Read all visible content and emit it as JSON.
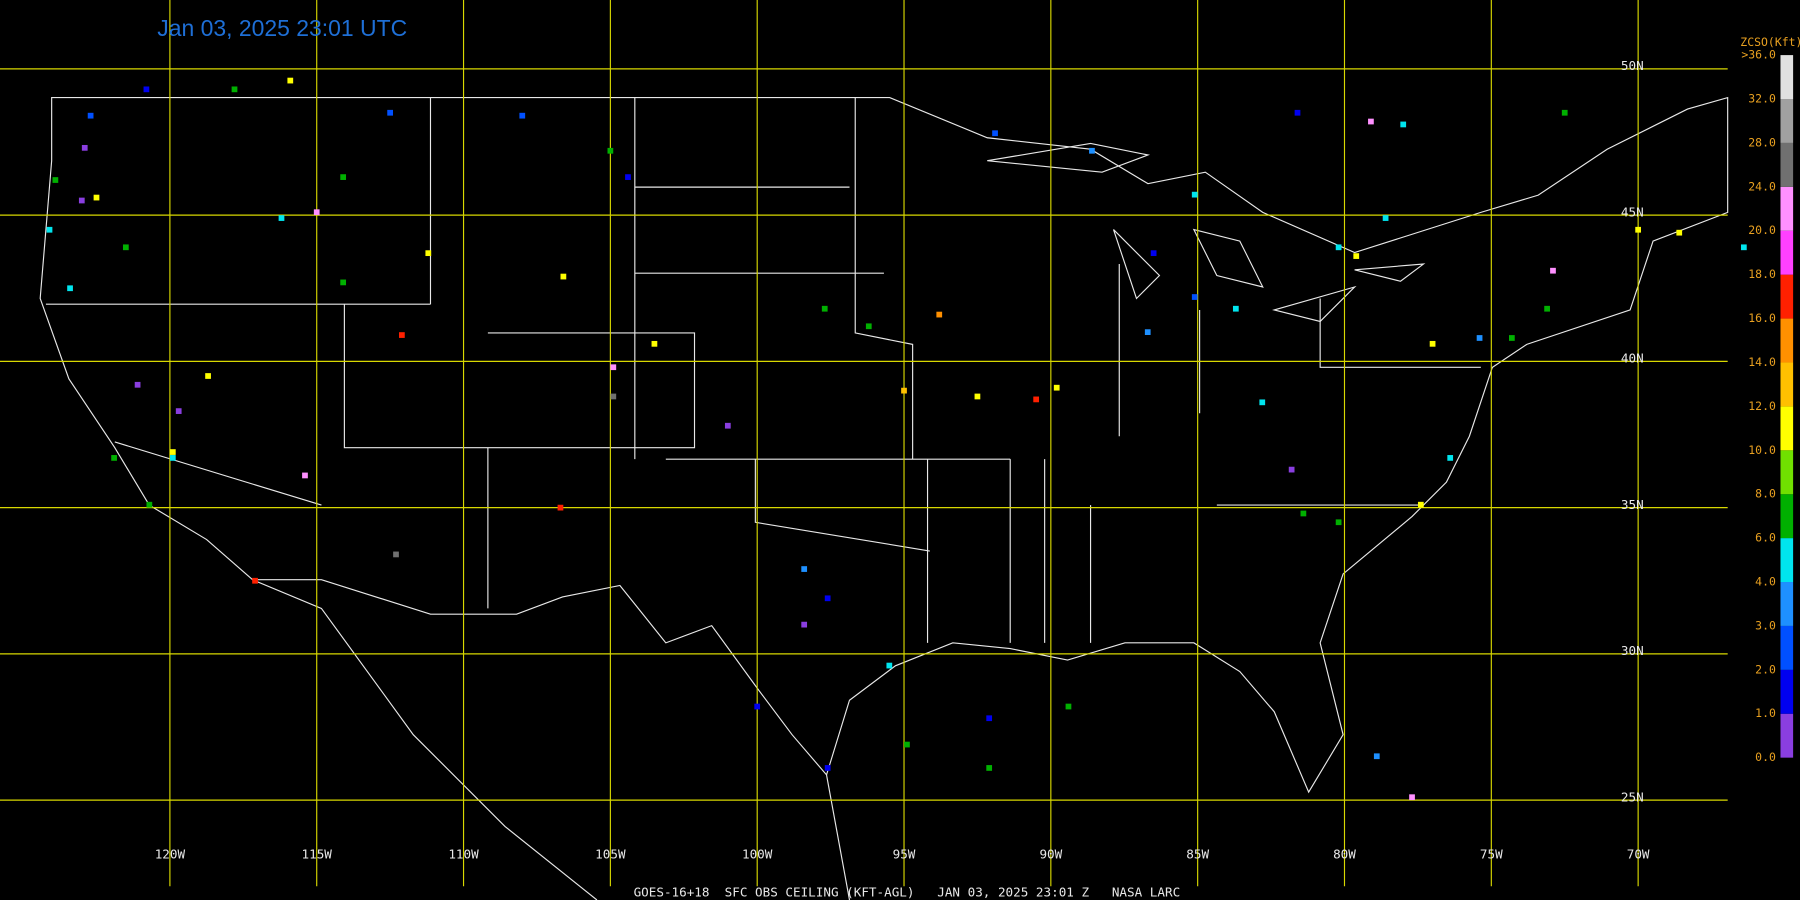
{
  "title": "Jan 03, 2025 23:01 UTC",
  "caption": "GOES-16+18  SFC OBS CEILING (KFT-AGL)   JAN 03, 2025 23:01 Z   NASA LARC",
  "map": {
    "type": "station-map",
    "lon_ticks": [
      {
        "value": -120,
        "label": "120W"
      },
      {
        "value": -115,
        "label": "115W"
      },
      {
        "value": -110,
        "label": "110W"
      },
      {
        "value": -105,
        "label": "105W"
      },
      {
        "value": -100,
        "label": "100W"
      },
      {
        "value": -95,
        "label": "95W"
      },
      {
        "value": -90,
        "label": "90W"
      },
      {
        "value": -85,
        "label": "85W"
      },
      {
        "value": -80,
        "label": "80W"
      },
      {
        "value": -75,
        "label": "75W"
      },
      {
        "value": -70,
        "label": "70W"
      }
    ],
    "lat_ticks": [
      {
        "value": 50,
        "label": "50N"
      },
      {
        "value": 45,
        "label": "45N"
      },
      {
        "value": 40,
        "label": "40N"
      },
      {
        "value": 35,
        "label": "35N"
      },
      {
        "value": 30,
        "label": "30N"
      },
      {
        "value": 25,
        "label": "25N"
      }
    ],
    "grid_color": "#d8d800",
    "legend": {
      "title": "ZCSO(Kft)",
      "ticks": [
        {
          "value": 0,
          "label": "0.0"
        },
        {
          "value": 1,
          "label": "1.0"
        },
        {
          "value": 2,
          "label": "2.0"
        },
        {
          "value": 3,
          "label": "3.0"
        },
        {
          "value": 4,
          "label": "4.0"
        },
        {
          "value": 6,
          "label": "6.0"
        },
        {
          "value": 8,
          "label": "8.0"
        },
        {
          "value": 10,
          "label": "10.0"
        },
        {
          "value": 12,
          "label": "12.0"
        },
        {
          "value": 14,
          "label": "14.0"
        },
        {
          "value": 16,
          "label": "16.0"
        },
        {
          "value": 18,
          "label": "18.0"
        },
        {
          "value": 20,
          "label": "20.0"
        },
        {
          "value": 24,
          "label": "24.0"
        },
        {
          "value": 28,
          "label": "28.0"
        },
        {
          "value": 32,
          "label": "32.0"
        },
        {
          "value": 36,
          "label": ">36.0"
        }
      ],
      "colors": [
        "#8a3ee0",
        "#0000f0",
        "#0050ff",
        "#1e90ff",
        "#00e5ee",
        "#00b000",
        "#70e000",
        "#ffff00",
        "#ffc000",
        "#ff9000",
        "#ff2000",
        "#ff40ff",
        "#ff90ff",
        "#707070",
        "#a0a0a0",
        "#e0e0e0"
      ]
    },
    "stations": [
      {
        "lon": -117.8,
        "lat": 49.3,
        "ceiling": 7
      },
      {
        "lon": -115.9,
        "lat": 49.6,
        "ceiling": 11
      },
      {
        "lon": -120.8,
        "lat": 49.3,
        "ceiling": 1.5
      },
      {
        "lon": -122.7,
        "lat": 48.4,
        "ceiling": 2.5
      },
      {
        "lon": -122.9,
        "lat": 47.3,
        "ceiling": 0.5
      },
      {
        "lon": -123.9,
        "lat": 46.2,
        "ceiling": 7
      },
      {
        "lon": -123.0,
        "lat": 45.5,
        "ceiling": 0.5
      },
      {
        "lon": -122.5,
        "lat": 45.6,
        "ceiling": 11
      },
      {
        "lon": -124.1,
        "lat": 44.5,
        "ceiling": 5
      },
      {
        "lon": -121.5,
        "lat": 43.9,
        "ceiling": 7
      },
      {
        "lon": -123.4,
        "lat": 42.5,
        "ceiling": 5
      },
      {
        "lon": -112.5,
        "lat": 48.5,
        "ceiling": 2.5
      },
      {
        "lon": -114.1,
        "lat": 46.3,
        "ceiling": 7
      },
      {
        "lon": -115.0,
        "lat": 45.1,
        "ceiling": 21
      },
      {
        "lon": -116.2,
        "lat": 44.9,
        "ceiling": 5
      },
      {
        "lon": -114.1,
        "lat": 42.7,
        "ceiling": 7
      },
      {
        "lon": -112.1,
        "lat": 40.9,
        "ceiling": 17
      },
      {
        "lon": -111.2,
        "lat": 43.7,
        "ceiling": 11
      },
      {
        "lon": -108.0,
        "lat": 48.4,
        "ceiling": 2.5
      },
      {
        "lon": -105.0,
        "lat": 47.2,
        "ceiling": 7
      },
      {
        "lon": -104.4,
        "lat": 46.3,
        "ceiling": 1.5
      },
      {
        "lon": -106.6,
        "lat": 42.9,
        "ceiling": 11
      },
      {
        "lon": -103.5,
        "lat": 40.6,
        "ceiling": 11
      },
      {
        "lon": -104.9,
        "lat": 39.8,
        "ceiling": 21
      },
      {
        "lon": -104.9,
        "lat": 38.8,
        "ceiling": 26
      },
      {
        "lon": -106.7,
        "lat": 35.0,
        "ceiling": 17
      },
      {
        "lon": -112.3,
        "lat": 33.4,
        "ceiling": 26
      },
      {
        "lon": -115.4,
        "lat": 36.1,
        "ceiling": 21
      },
      {
        "lon": -117.1,
        "lat": 32.5,
        "ceiling": 17
      },
      {
        "lon": -119.9,
        "lat": 36.7,
        "ceiling": 5
      },
      {
        "lon": -120.7,
        "lat": 35.1,
        "ceiling": 7
      },
      {
        "lon": -121.9,
        "lat": 36.7,
        "ceiling": 7
      },
      {
        "lon": -119.7,
        "lat": 38.3,
        "ceiling": 0.5
      },
      {
        "lon": -121.1,
        "lat": 39.2,
        "ceiling": 0.5
      },
      {
        "lon": -118.7,
        "lat": 39.5,
        "ceiling": 11
      },
      {
        "lon": -119.9,
        "lat": 36.9,
        "ceiling": 11
      },
      {
        "lon": -101.0,
        "lat": 37.8,
        "ceiling": 0.5
      },
      {
        "lon": -97.7,
        "lat": 41.8,
        "ceiling": 7
      },
      {
        "lon": -96.2,
        "lat": 41.2,
        "ceiling": 7
      },
      {
        "lon": -93.8,
        "lat": 41.6,
        "ceiling": 15
      },
      {
        "lon": -95.0,
        "lat": 39.0,
        "ceiling": 13
      },
      {
        "lon": -92.5,
        "lat": 38.8,
        "ceiling": 11
      },
      {
        "lon": -90.5,
        "lat": 38.7,
        "ceiling": 17
      },
      {
        "lon": -89.8,
        "lat": 39.1,
        "ceiling": 11
      },
      {
        "lon": -98.4,
        "lat": 32.9,
        "ceiling": 3.5
      },
      {
        "lon": -97.6,
        "lat": 31.9,
        "ceiling": 1.5
      },
      {
        "lon": -95.5,
        "lat": 29.6,
        "ceiling": 5
      },
      {
        "lon": -98.4,
        "lat": 31.0,
        "ceiling": 0.5
      },
      {
        "lon": -100.0,
        "lat": 28.2,
        "ceiling": 1.5
      },
      {
        "lon": -97.6,
        "lat": 26.1,
        "ceiling": 1.5
      },
      {
        "lon": -94.9,
        "lat": 26.9,
        "ceiling": 7
      },
      {
        "lon": -92.1,
        "lat": 26.1,
        "ceiling": 7
      },
      {
        "lon": -92.1,
        "lat": 27.8,
        "ceiling": 1.5
      },
      {
        "lon": -89.4,
        "lat": 28.2,
        "ceiling": 7
      },
      {
        "lon": -91.9,
        "lat": 47.8,
        "ceiling": 2.5
      },
      {
        "lon": -88.6,
        "lat": 47.2,
        "ceiling": 3.5
      },
      {
        "lon": -86.5,
        "lat": 43.7,
        "ceiling": 1.5
      },
      {
        "lon": -85.1,
        "lat": 42.2,
        "ceiling": 2.5
      },
      {
        "lon": -83.7,
        "lat": 41.8,
        "ceiling": 5
      },
      {
        "lon": -86.7,
        "lat": 41.0,
        "ceiling": 3.5
      },
      {
        "lon": -82.8,
        "lat": 38.6,
        "ceiling": 5
      },
      {
        "lon": -81.8,
        "lat": 36.3,
        "ceiling": 0.5
      },
      {
        "lon": -81.4,
        "lat": 34.8,
        "ceiling": 7
      },
      {
        "lon": -80.2,
        "lat": 34.5,
        "ceiling": 7
      },
      {
        "lon": -79.1,
        "lat": 48.2,
        "ceiling": 21
      },
      {
        "lon": -81.6,
        "lat": 48.5,
        "ceiling": 1.5
      },
      {
        "lon": -78.0,
        "lat": 48.1,
        "ceiling": 5
      },
      {
        "lon": -72.5,
        "lat": 48.5,
        "ceiling": 7
      },
      {
        "lon": -77.0,
        "lat": 40.6,
        "ceiling": 11
      },
      {
        "lon": -75.4,
        "lat": 40.8,
        "ceiling": 3.5
      },
      {
        "lon": -74.3,
        "lat": 40.8,
        "ceiling": 7
      },
      {
        "lon": -73.1,
        "lat": 41.8,
        "ceiling": 7
      },
      {
        "lon": -77.4,
        "lat": 35.1,
        "ceiling": 11
      },
      {
        "lon": -76.4,
        "lat": 36.7,
        "ceiling": 5
      },
      {
        "lon": -70.0,
        "lat": 44.5,
        "ceiling": 11
      },
      {
        "lon": -68.6,
        "lat": 44.4,
        "ceiling": 11
      },
      {
        "lon": -66.4,
        "lat": 43.9,
        "ceiling": 5
      },
      {
        "lon": -78.9,
        "lat": 26.5,
        "ceiling": 3.5
      },
      {
        "lon": -77.7,
        "lat": 25.1,
        "ceiling": 21
      },
      {
        "lon": -80.2,
        "lat": 43.9,
        "ceiling": 5
      },
      {
        "lon": -79.6,
        "lat": 43.6,
        "ceiling": 11
      },
      {
        "lon": -72.9,
        "lat": 43.1,
        "ceiling": 21
      },
      {
        "lon": -78.6,
        "lat": 44.9,
        "ceiling": 5
      },
      {
        "lon": -85.1,
        "lat": 45.7,
        "ceiling": 5
      }
    ]
  }
}
